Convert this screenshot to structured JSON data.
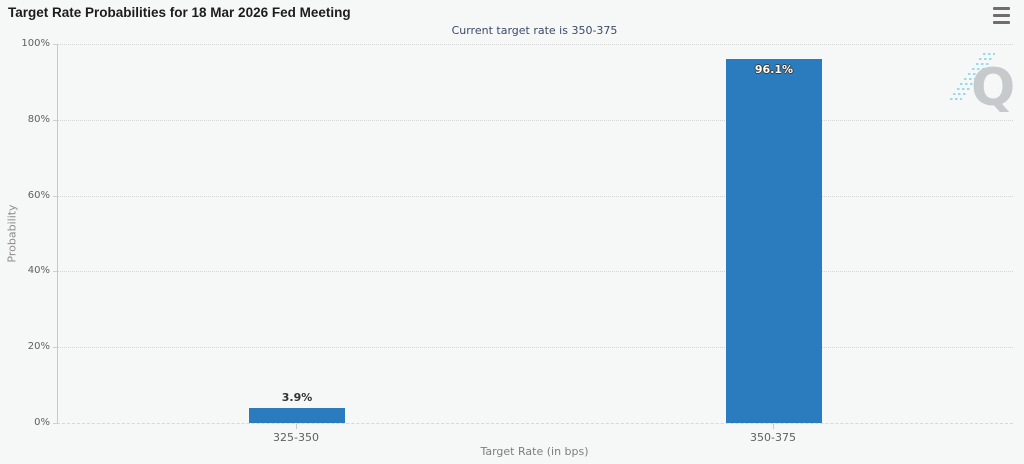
{
  "header": {
    "title": "Target Rate Probabilities for 18 Mar 2026 Fed Meeting",
    "subtitle": "Current target rate is 350-375"
  },
  "menu": {
    "icon": "hamburger-menu-icon",
    "tooltip": "Chart context menu"
  },
  "watermark": {
    "letter": "Q"
  },
  "chart_data": {
    "type": "bar",
    "title": "Target Rate Probabilities for 18 Mar 2026 Fed Meeting",
    "subtitle": "Current target rate is 350-375",
    "categories": [
      "325-350",
      "350-375"
    ],
    "values": [
      3.9,
      96.1
    ],
    "value_labels": [
      "3.9%",
      "96.1%"
    ],
    "xlabel": "Target Rate (in bps)",
    "ylabel": "Probability",
    "ylim": [
      0,
      100
    ],
    "yticks": [
      0,
      20,
      40,
      60,
      80,
      100
    ],
    "ytick_labels": [
      "0%",
      "20%",
      "40%",
      "60%",
      "80%",
      "100%"
    ],
    "grid": "horizontal-dotted",
    "legend": "none",
    "bar_color": "#2a7cbe",
    "inside_label_threshold": 10
  },
  "colors": {
    "background": "#f6f7f7",
    "title_text": "#1d1d1d",
    "subtitle_text": "#3e4a68",
    "axis_text": "#606060",
    "axis_title_text": "#8c8c8c",
    "gridline": "#d4d4d4",
    "axis_line": "#c9c9c9",
    "bar": "#2a7cbe",
    "watermark_gray": "#c7cacc",
    "watermark_blue": "#9bd9ec"
  }
}
